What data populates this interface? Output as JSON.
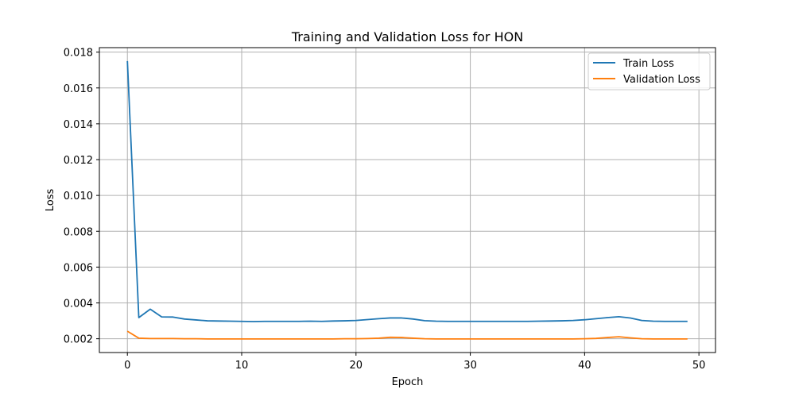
{
  "chart_data": {
    "type": "line",
    "title": "Training and Validation Loss for HON",
    "xlabel": "Epoch",
    "ylabel": "Loss",
    "xlim": [
      -2.45,
      51.45
    ],
    "ylim": [
      0.00123,
      0.01825
    ],
    "xticks": [
      0,
      10,
      20,
      30,
      40,
      50
    ],
    "yticks": [
      0.002,
      0.004,
      0.006,
      0.008,
      0.01,
      0.012,
      0.014,
      0.016,
      0.018
    ],
    "xtick_labels": [
      "0",
      "10",
      "20",
      "30",
      "40",
      "50"
    ],
    "ytick_labels": [
      "0.002",
      "0.004",
      "0.006",
      "0.008",
      "0.010",
      "0.012",
      "0.014",
      "0.016",
      "0.018"
    ],
    "grid": true,
    "legend_position": "top-right",
    "x": [
      0,
      1,
      2,
      3,
      4,
      5,
      6,
      7,
      8,
      9,
      10,
      11,
      12,
      13,
      14,
      15,
      16,
      17,
      18,
      19,
      20,
      21,
      22,
      23,
      24,
      25,
      26,
      27,
      28,
      29,
      30,
      31,
      32,
      33,
      34,
      35,
      36,
      37,
      38,
      39,
      40,
      41,
      42,
      43,
      44,
      45,
      46,
      47,
      48,
      49
    ],
    "series": [
      {
        "name": "Train Loss",
        "color": "#1f77b4",
        "values": [
          0.0175,
          0.00318,
          0.00365,
          0.00322,
          0.00321,
          0.0031,
          0.00305,
          0.003,
          0.00299,
          0.00298,
          0.00297,
          0.00296,
          0.00297,
          0.00297,
          0.00297,
          0.00297,
          0.00298,
          0.00297,
          0.00299,
          0.003,
          0.00302,
          0.00307,
          0.00312,
          0.00316,
          0.00316,
          0.0031,
          0.00301,
          0.00298,
          0.00297,
          0.00297,
          0.00297,
          0.00297,
          0.00297,
          0.00297,
          0.00297,
          0.00297,
          0.00298,
          0.00299,
          0.003,
          0.00302,
          0.00306,
          0.00312,
          0.00318,
          0.00323,
          0.00316,
          0.00302,
          0.00298,
          0.00297,
          0.00297,
          0.00297
        ]
      },
      {
        "name": "Validation Loss",
        "color": "#ff7f0e",
        "values": [
          0.00242,
          0.00203,
          0.00201,
          0.00201,
          0.00201,
          0.002,
          0.002,
          0.00199,
          0.00199,
          0.00199,
          0.00199,
          0.00199,
          0.00199,
          0.00199,
          0.00199,
          0.00199,
          0.00199,
          0.00199,
          0.00199,
          0.002,
          0.002,
          0.00201,
          0.00203,
          0.00208,
          0.00207,
          0.00203,
          0.002,
          0.00199,
          0.00199,
          0.00199,
          0.00199,
          0.00199,
          0.00199,
          0.00199,
          0.00199,
          0.00199,
          0.00199,
          0.00199,
          0.00199,
          0.00199,
          0.002,
          0.00202,
          0.00207,
          0.00211,
          0.00205,
          0.002,
          0.00199,
          0.00199,
          0.00199,
          0.00199
        ]
      }
    ]
  }
}
